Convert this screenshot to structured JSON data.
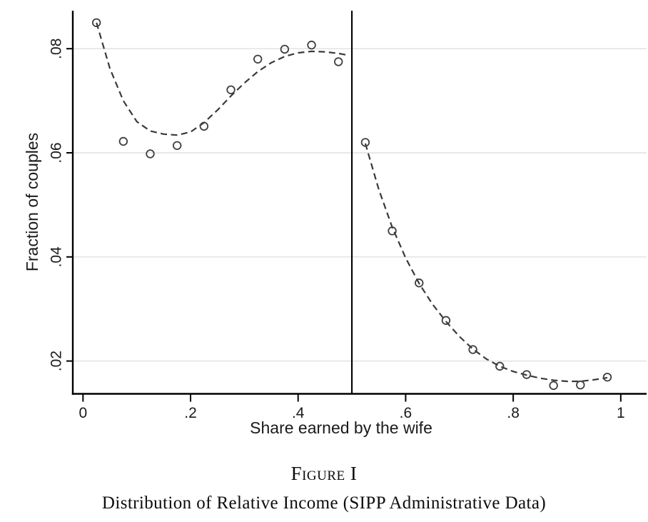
{
  "figure": {
    "label": "Figure I",
    "caption": "Distribution of Relative Income (SIPP Administrative Data)"
  },
  "chart_data": {
    "type": "scatter",
    "title": "",
    "xlabel": "Share earned by the wife",
    "ylabel": "Fraction of couples",
    "xlim": [
      -0.019,
      1.048
    ],
    "ylim": [
      0.0137,
      0.0873
    ],
    "x_ticks": [
      0,
      0.2,
      0.4,
      0.6,
      0.8,
      1
    ],
    "x_tick_labels": [
      "0",
      ".2",
      ".4",
      ".6",
      ".8",
      "1"
    ],
    "y_ticks": [
      0.02,
      0.04,
      0.06,
      0.08
    ],
    "y_tick_labels": [
      ".02",
      ".04",
      ".06",
      ".08"
    ],
    "grid": "horizontal-gridlines-at-y-ticks",
    "legend": "none",
    "reference_line_x": 0.5,
    "series": [
      {
        "name": "binned-scatter",
        "type": "scatter",
        "marker": "hollow-circle",
        "x": [
          0.025,
          0.075,
          0.125,
          0.175,
          0.225,
          0.275,
          0.325,
          0.375,
          0.425,
          0.475,
          0.525,
          0.575,
          0.625,
          0.675,
          0.725,
          0.775,
          0.825,
          0.875,
          0.925,
          0.975
        ],
        "y": [
          0.085,
          0.0622,
          0.0598,
          0.0614,
          0.0651,
          0.0721,
          0.078,
          0.0799,
          0.0807,
          0.0775,
          0.062,
          0.045,
          0.035,
          0.0278,
          0.0222,
          0.019,
          0.0174,
          0.0153,
          0.0154,
          0.0169
        ]
      },
      {
        "name": "fitted-curve-left-of-0.5",
        "type": "dashed-line",
        "points": [
          [
            0.025,
            0.085
          ],
          [
            0.05,
            0.0762
          ],
          [
            0.075,
            0.07
          ],
          [
            0.1,
            0.066
          ],
          [
            0.125,
            0.0642
          ],
          [
            0.15,
            0.0636
          ],
          [
            0.175,
            0.0634
          ],
          [
            0.2,
            0.064
          ],
          [
            0.225,
            0.0658
          ],
          [
            0.25,
            0.0682
          ],
          [
            0.275,
            0.0709
          ],
          [
            0.3,
            0.0734
          ],
          [
            0.325,
            0.0756
          ],
          [
            0.35,
            0.0773
          ],
          [
            0.375,
            0.0785
          ],
          [
            0.4,
            0.0792
          ],
          [
            0.425,
            0.0795
          ],
          [
            0.45,
            0.0794
          ],
          [
            0.475,
            0.0791
          ],
          [
            0.49,
            0.0788
          ]
        ]
      },
      {
        "name": "fitted-curve-right-of-0.5",
        "type": "dashed-line",
        "points": [
          [
            0.525,
            0.0618
          ],
          [
            0.55,
            0.053
          ],
          [
            0.575,
            0.0457
          ],
          [
            0.6,
            0.0398
          ],
          [
            0.625,
            0.0349
          ],
          [
            0.65,
            0.0309
          ],
          [
            0.675,
            0.0276
          ],
          [
            0.7,
            0.0247
          ],
          [
            0.725,
            0.0223
          ],
          [
            0.75,
            0.0204
          ],
          [
            0.775,
            0.019
          ],
          [
            0.8,
            0.018
          ],
          [
            0.825,
            0.0173
          ],
          [
            0.85,
            0.0167
          ],
          [
            0.875,
            0.0163
          ],
          [
            0.9,
            0.0161
          ],
          [
            0.925,
            0.0161
          ],
          [
            0.95,
            0.0164
          ],
          [
            0.975,
            0.0168
          ]
        ]
      }
    ],
    "colors": {
      "background": "#ffffff",
      "axis": "#000000",
      "grid": "#e0e0e0",
      "marker": "#3f3f3f",
      "fit_line": "#3a3a3a",
      "reference_line": "#000000",
      "text": "#1a1a1a"
    }
  }
}
